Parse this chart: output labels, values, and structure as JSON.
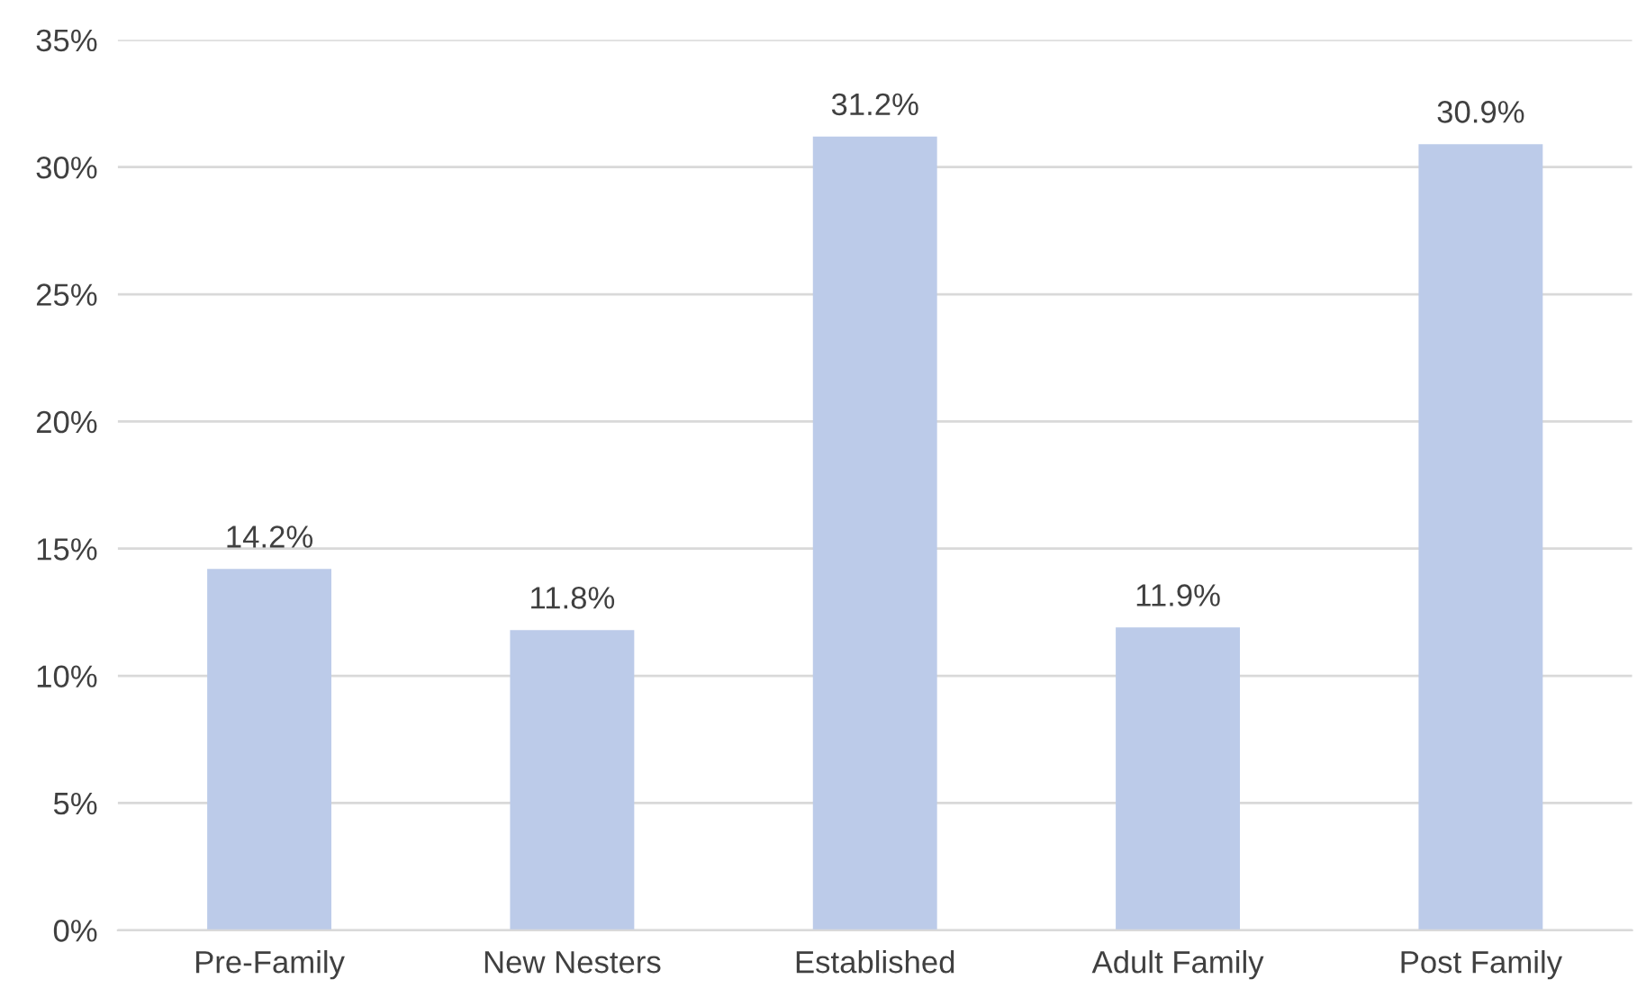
{
  "chart_data": {
    "type": "bar",
    "categories": [
      "Pre-Family",
      "New Nesters",
      "Established",
      "Adult Family",
      "Post Family"
    ],
    "values": [
      14.2,
      11.8,
      31.2,
      11.9,
      30.9
    ],
    "value_labels": [
      "14.2%",
      "11.8%",
      "31.2%",
      "11.9%",
      "30.9%"
    ],
    "color": "#bccbe9",
    "ylim": [
      0,
      35
    ],
    "yticks": [
      {
        "value": 0,
        "label": "0%"
      },
      {
        "value": 5,
        "label": "5%"
      },
      {
        "value": 10,
        "label": "10%"
      },
      {
        "value": 15,
        "label": "15%"
      },
      {
        "value": 20,
        "label": "20%"
      },
      {
        "value": 25,
        "label": "25%"
      },
      {
        "value": 30,
        "label": "30%"
      },
      {
        "value": 35,
        "label": "35%"
      }
    ],
    "grid": "y",
    "legend": false
  }
}
